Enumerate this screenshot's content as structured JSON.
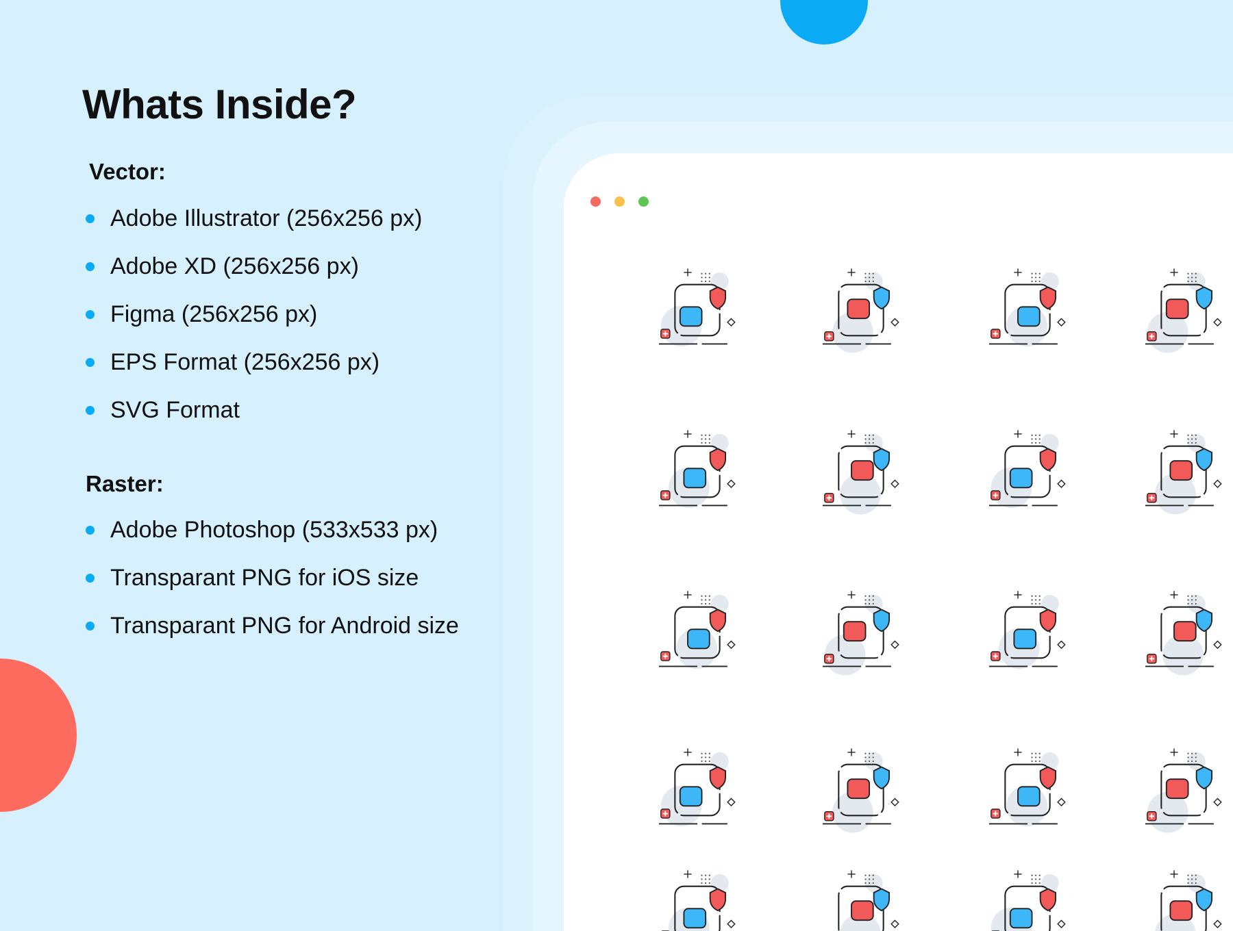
{
  "heading": "Whats Inside?",
  "vector": {
    "label": "Vector:",
    "items": [
      "Adobe Illustrator (256x256 px)",
      "Adobe XD (256x256 px)",
      "Figma (256x256 px)",
      "EPS Format (256x256 px)",
      "SVG Format"
    ]
  },
  "raster": {
    "label": "Raster:",
    "items": [
      "Adobe Photoshop (533x533 px)",
      "Transparant PNG for iOS size",
      "Transparant PNG for Android size"
    ]
  },
  "colors": {
    "accent_blue": "#0aaaf5",
    "accent_red": "#fd6b5e",
    "icon_blue": "#3db7f7",
    "icon_red": "#f25a5a",
    "window_close": "#f06b60",
    "window_minimize": "#f8c14e",
    "window_maximize": "#5ec755"
  },
  "icons": [
    [
      "face-mask-people-icon",
      "hand-shield-icon",
      "hand-sanitizer-icon",
      "test-tube-icon"
    ],
    [
      "vaccine-syringe-icon",
      "lungs-virus-icon",
      "sneeze-icon",
      "fever-icon"
    ],
    [
      "oxygen-mask-icon",
      "telemedicine-icon",
      "first-aid-kit-icon",
      "hospital-icon"
    ],
    [
      "microscope-lab-icon",
      "medical-report-icon",
      "caduceus-icon",
      "medicine-pills-icon"
    ],
    [
      "calendar-appointment-icon",
      "emergency-call-icon",
      "heart-monitor-icon",
      "iv-drip-icon"
    ]
  ]
}
